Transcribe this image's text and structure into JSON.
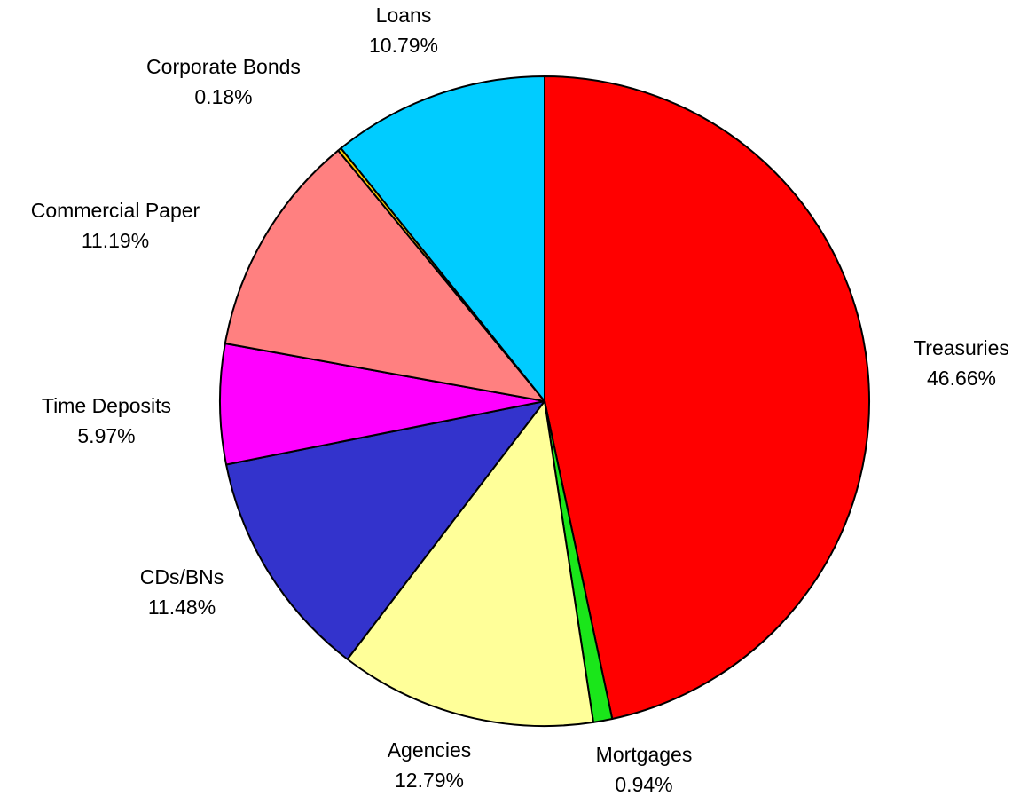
{
  "chart_data": {
    "type": "pie",
    "title": "",
    "slices": [
      {
        "name": "Treasuries",
        "value": 46.66,
        "label": "46.66%",
        "color": "#FF0000"
      },
      {
        "name": "Mortgages",
        "value": 0.94,
        "label": "0.94%",
        "color": "#1AE61A"
      },
      {
        "name": "Agencies",
        "value": 12.79,
        "label": "12.79%",
        "color": "#FFFF99"
      },
      {
        "name": "CDs/BNs",
        "value": 11.48,
        "label": "11.48%",
        "color": "#3333CC"
      },
      {
        "name": "Time Deposits",
        "value": 5.97,
        "label": "5.97%",
        "color": "#FF00FF"
      },
      {
        "name": "Commercial Paper",
        "value": 11.19,
        "label": "11.19%",
        "color": "#FF8080"
      },
      {
        "name": "Corporate Bonds",
        "value": 0.18,
        "label": "0.18%",
        "color": "#FFCC00"
      },
      {
        "name": "Loans",
        "value": 10.79,
        "label": "10.79%",
        "color": "#00CCFF"
      }
    ],
    "start": "12 o'clock",
    "direction": "clockwise",
    "legend": "none"
  }
}
